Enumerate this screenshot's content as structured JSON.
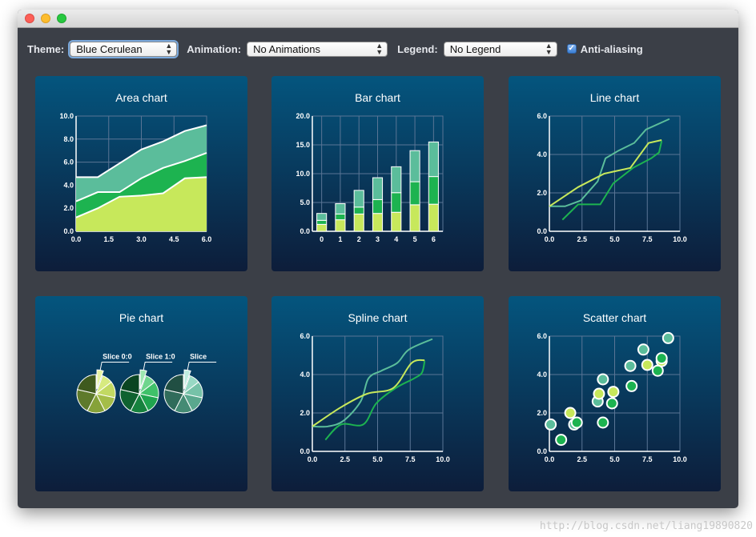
{
  "toolbar": {
    "theme_label": "Theme:",
    "theme_value": "Blue Cerulean",
    "animation_label": "Animation:",
    "animation_value": "No Animations",
    "legend_label": "Legend:",
    "legend_value": "No Legend",
    "antialias_label": "Anti-aliasing",
    "antialias_checked": true
  },
  "panels": {
    "area": {
      "title": "Area chart"
    },
    "bar": {
      "title": "Bar chart"
    },
    "line": {
      "title": "Line chart"
    },
    "pie": {
      "title": "Pie chart"
    },
    "spline": {
      "title": "Spline chart"
    },
    "scatter": {
      "title": "Scatter chart"
    }
  },
  "colors": {
    "panel_top": "#04557e",
    "panel_bottom": "#0d1d3a",
    "series": [
      "#c7e85b",
      "#1db350",
      "#5bbd9b"
    ],
    "grid": "#5a7595"
  },
  "watermark": "http://blog.csdn.net/liang19890820",
  "chart_data": [
    {
      "type": "area",
      "title": "Area chart",
      "x": [
        0,
        1,
        2,
        3,
        4,
        5,
        6
      ],
      "xticks": [
        "0.0",
        "1.5",
        "3.0",
        "4.5",
        "6.0"
      ],
      "yticks": [
        "0.0",
        "2.0",
        "4.0",
        "6.0",
        "8.0",
        "10.0"
      ],
      "xlim": [
        0,
        6
      ],
      "ylim": [
        0,
        10
      ],
      "series": [
        {
          "values": [
            1.2,
            2.0,
            3.0,
            3.1,
            3.3,
            4.6,
            4.7
          ]
        },
        {
          "values": [
            2.6,
            3.4,
            3.4,
            4.6,
            5.5,
            6.1,
            6.8
          ]
        },
        {
          "values": [
            4.7,
            4.7,
            5.9,
            7.1,
            7.8,
            8.7,
            9.2
          ]
        }
      ],
      "grid": true
    },
    {
      "type": "bar",
      "title": "Bar chart",
      "categories": [
        "0",
        "1",
        "2",
        "3",
        "4",
        "5",
        "6"
      ],
      "yticks": [
        "0.0",
        "5.0",
        "10.0",
        "15.0",
        "20.0"
      ],
      "ylim": [
        0,
        20
      ],
      "stacked": true,
      "series": [
        {
          "values": [
            1.2,
            2.0,
            3.0,
            3.1,
            3.3,
            4.6,
            4.7
          ]
        },
        {
          "values": [
            0.7,
            1.0,
            1.2,
            2.4,
            3.4,
            4.0,
            4.8
          ]
        },
        {
          "values": [
            1.2,
            1.8,
            2.9,
            3.8,
            4.5,
            5.4,
            6.0
          ]
        }
      ],
      "grid": true
    },
    {
      "type": "line",
      "title": "Line chart",
      "xticks": [
        "0.0",
        "2.5",
        "5.0",
        "7.5",
        "10.0"
      ],
      "yticks": [
        "0.0",
        "2.0",
        "4.0",
        "6.0"
      ],
      "xlim": [
        0,
        10
      ],
      "ylim": [
        0,
        6
      ],
      "series": [
        {
          "points": [
            [
              0,
              1.3
            ],
            [
              2.2,
              2.3
            ],
            [
              4.2,
              3.0
            ],
            [
              6.2,
              3.3
            ],
            [
              7.6,
              4.6
            ],
            [
              8.6,
              4.75
            ]
          ]
        },
        {
          "points": [
            [
              1,
              0.6
            ],
            [
              2.2,
              1.4
            ],
            [
              3.9,
              1.4
            ],
            [
              4.9,
              2.5
            ],
            [
              6.4,
              3.3
            ],
            [
              7.8,
              3.8
            ],
            [
              8.4,
              4.1
            ],
            [
              8.6,
              4.7
            ]
          ]
        },
        {
          "points": [
            [
              0,
              1.3
            ],
            [
              1.2,
              1.3
            ],
            [
              2.4,
              1.6
            ],
            [
              3.7,
              2.6
            ],
            [
              4.3,
              3.8
            ],
            [
              5.3,
              4.2
            ],
            [
              6.5,
              4.6
            ],
            [
              7.4,
              5.3
            ],
            [
              9.2,
              5.85
            ]
          ]
        }
      ],
      "grid": true
    },
    {
      "type": "pie",
      "title": "Pie chart",
      "pies": [
        {
          "label": "Slice 0:0",
          "slices": [
            1.2,
            2.0,
            3.0,
            3.1,
            3.3,
            4.6,
            4.7
          ],
          "colors": [
            "#e7f3a4",
            "#d7ea80",
            "#c2d962",
            "#a4bd48",
            "#86a239",
            "#5e7a2b",
            "#3f5a1e"
          ]
        },
        {
          "label": "Slice 1:0",
          "slices": [
            1.2,
            2.0,
            3.0,
            3.1,
            3.3,
            4.6,
            4.7
          ],
          "colors": [
            "#9ee7b0",
            "#6fd58d",
            "#3fc169",
            "#1fa44f",
            "#16823e",
            "#0f6230",
            "#0a4522"
          ]
        },
        {
          "label": "Slice",
          "slices": [
            1.2,
            2.0,
            3.0,
            3.1,
            3.3,
            4.6,
            4.7
          ],
          "colors": [
            "#bfece0",
            "#98d9c4",
            "#76c2a8",
            "#5aa88e",
            "#448b74",
            "#306c5b",
            "#214f43"
          ]
        }
      ]
    },
    {
      "type": "line",
      "title": "Spline chart",
      "smooth": true,
      "xticks": [
        "0.0",
        "2.5",
        "5.0",
        "7.5",
        "10.0"
      ],
      "yticks": [
        "0.0",
        "2.0",
        "4.0",
        "6.0"
      ],
      "xlim": [
        0,
        10
      ],
      "ylim": [
        0,
        6
      ],
      "series": [
        {
          "points": [
            [
              0,
              1.3
            ],
            [
              2.2,
              2.3
            ],
            [
              4.2,
              3.0
            ],
            [
              6.2,
              3.3
            ],
            [
              7.6,
              4.6
            ],
            [
              8.6,
              4.75
            ]
          ]
        },
        {
          "points": [
            [
              1,
              0.6
            ],
            [
              2.2,
              1.4
            ],
            [
              3.9,
              1.4
            ],
            [
              4.9,
              2.5
            ],
            [
              6.4,
              3.3
            ],
            [
              7.8,
              3.8
            ],
            [
              8.4,
              4.1
            ],
            [
              8.6,
              4.7
            ]
          ]
        },
        {
          "points": [
            [
              0,
              1.3
            ],
            [
              1.2,
              1.3
            ],
            [
              2.4,
              1.6
            ],
            [
              3.7,
              2.6
            ],
            [
              4.3,
              3.8
            ],
            [
              5.3,
              4.2
            ],
            [
              6.5,
              4.6
            ],
            [
              7.4,
              5.3
            ],
            [
              9.2,
              5.85
            ]
          ]
        }
      ],
      "grid": true
    },
    {
      "type": "scatter",
      "title": "Scatter chart",
      "xticks": [
        "0.0",
        "2.5",
        "5.0",
        "7.5",
        "10.0"
      ],
      "yticks": [
        "0.0",
        "2.0",
        "4.0",
        "6.0"
      ],
      "xlim": [
        0,
        10
      ],
      "ylim": [
        0,
        6
      ],
      "series": [
        {
          "points": [
            [
              1.6,
              2.0
            ],
            [
              3.8,
              3.0
            ],
            [
              4.9,
              3.1
            ],
            [
              7.5,
              4.5
            ],
            [
              8.6,
              4.7
            ]
          ]
        },
        {
          "points": [
            [
              0.9,
              0.6
            ],
            [
              2.1,
              1.5
            ],
            [
              4.1,
              1.5
            ],
            [
              4.8,
              2.5
            ],
            [
              6.3,
              3.4
            ],
            [
              8.3,
              4.2
            ],
            [
              8.6,
              4.85
            ]
          ]
        },
        {
          "points": [
            [
              0.1,
              1.4
            ],
            [
              1.9,
              1.4
            ],
            [
              3.7,
              2.6
            ],
            [
              4.1,
              3.75
            ],
            [
              6.2,
              4.45
            ],
            [
              7.2,
              5.3
            ],
            [
              9.1,
              5.9
            ]
          ]
        }
      ],
      "grid": true
    }
  ]
}
